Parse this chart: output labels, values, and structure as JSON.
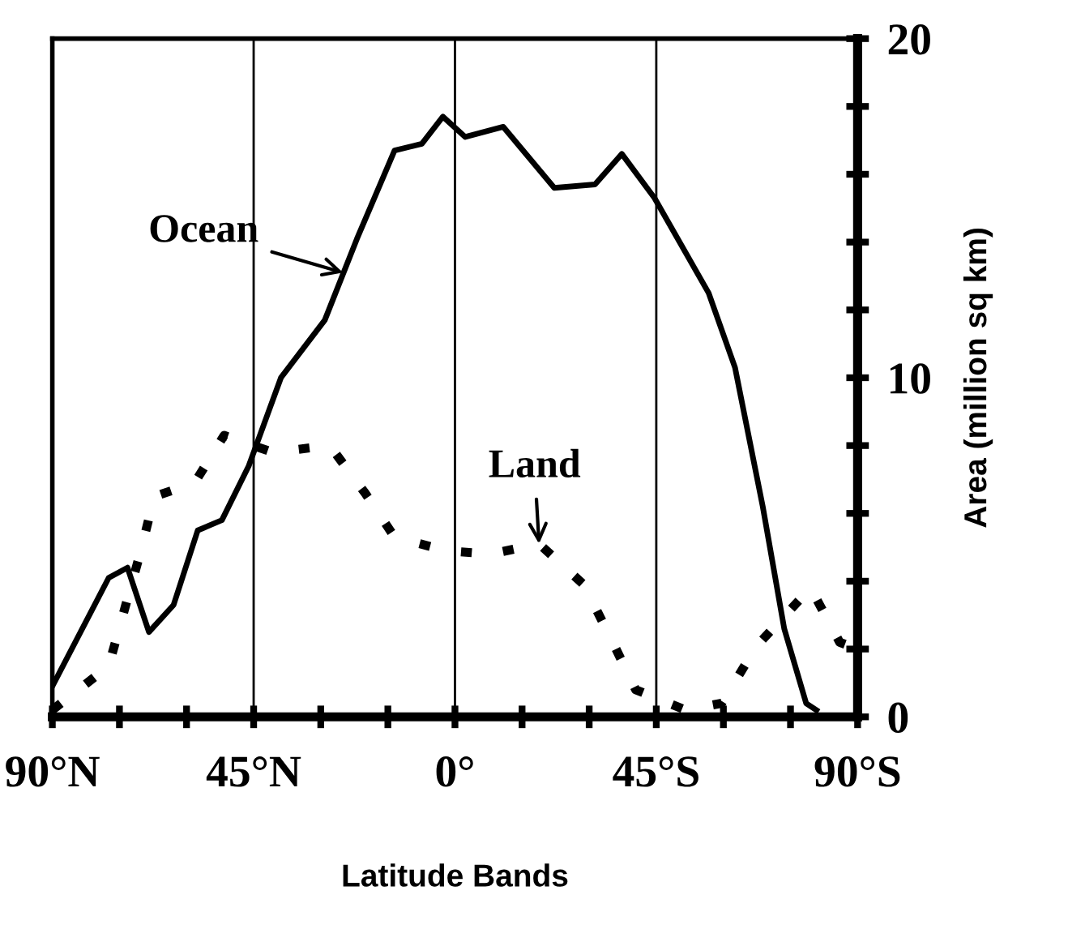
{
  "chart_data": {
    "type": "line",
    "xlabel": "Latitude Bands",
    "ylabel": "Area (million sq km)",
    "xlim": [
      90,
      -90
    ],
    "ylim": [
      0,
      20
    ],
    "xticks": [
      {
        "value": 90,
        "label": "90°N"
      },
      {
        "value": 75,
        "label": null
      },
      {
        "value": 60,
        "label": null
      },
      {
        "value": 45,
        "label": "45°N"
      },
      {
        "value": 30,
        "label": null
      },
      {
        "value": 15,
        "label": null
      },
      {
        "value": 0,
        "label": "0°"
      },
      {
        "value": -15,
        "label": null
      },
      {
        "value": -30,
        "label": null
      },
      {
        "value": -45,
        "label": "45°S"
      },
      {
        "value": -60,
        "label": null
      },
      {
        "value": -75,
        "label": null
      },
      {
        "value": -90,
        "label": "90°S"
      }
    ],
    "yticks": [
      0,
      {
        "value": 2,
        "label": null
      },
      {
        "value": 4,
        "label": null
      },
      {
        "value": 6,
        "label": null
      },
      {
        "value": 8,
        "label": null
      },
      10,
      {
        "value": 12,
        "label": null
      },
      {
        "value": 14,
        "label": null
      },
      {
        "value": 16,
        "label": null
      },
      {
        "value": 18,
        "label": null
      },
      20
    ],
    "grid": "x",
    "legend": false,
    "series": [
      {
        "color": "#000000",
        "line_style": "solid",
        "x": [
          90,
          77.4,
          73.2,
          68.4,
          62.9,
          57.5,
          52.1,
          46.1,
          38.9,
          29.1,
          21.9,
          13.5,
          7.4,
          2.7,
          -2.3,
          -10.8,
          -22.2,
          -31.3,
          -37.3,
          -44.6,
          -56.7,
          -62.6,
          -68.8,
          -73.6,
          -78.5,
          -80.8
        ],
        "values": [
          0.9,
          4.1,
          4.4,
          2.5,
          3.3,
          5.5,
          5.8,
          7.4,
          10.0,
          11.7,
          14.1,
          16.7,
          16.9,
          17.7,
          17.1,
          17.4,
          15.6,
          15.7,
          16.6,
          15.3,
          12.5,
          10.3,
          6.2,
          2.6,
          0.4,
          0.2
        ]
      },
      {
        "color": "#000000",
        "line_style": "dotted",
        "x": [
          90,
          77.4,
          70.2,
          67.2,
          58.2,
          51.6,
          40.7,
          28.0,
          20.1,
          13.5,
          1.9,
          -7.9,
          -18.8,
          -28.8,
          -34.9,
          -40.4,
          -51.6,
          -59.6,
          -67.5,
          -79.5,
          -86.0,
          -90
        ],
        "values": [
          0.2,
          1.5,
          4.9,
          6.5,
          6.9,
          8.3,
          7.8,
          8.0,
          6.6,
          5.3,
          4.9,
          4.8,
          5.1,
          3.9,
          2.3,
          0.8,
          0.2,
          0.4,
          2.1,
          3.8,
          2.2,
          2.0
        ]
      }
    ],
    "annotations": [
      {
        "text": "Ocean",
        "x": 25,
        "y": 13.1
      },
      {
        "text": "Land",
        "x": -18.8,
        "y": 5.1
      }
    ]
  }
}
